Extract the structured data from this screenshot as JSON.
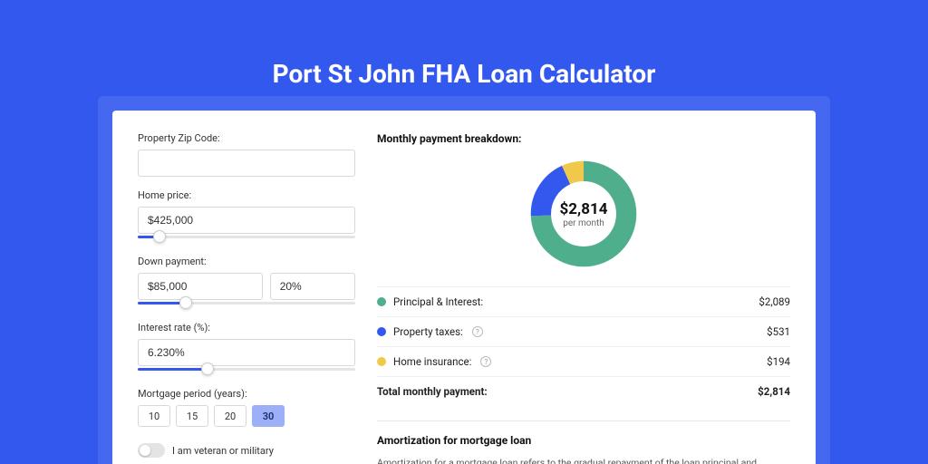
{
  "page": {
    "title": "Port St John FHA Loan Calculator",
    "bg_color": "#3358ee",
    "inner_bg_color": "#4667f0",
    "card_bg": "#ffffff"
  },
  "form": {
    "zip": {
      "label": "Property Zip Code:",
      "value": ""
    },
    "home_price": {
      "label": "Home price:",
      "value": "$425,000",
      "slider_pct": 10
    },
    "down_payment": {
      "label": "Down payment:",
      "amount": "$85,000",
      "pct": "20%",
      "slider_pct": 22
    },
    "interest_rate": {
      "label": "Interest rate (%):",
      "value": "6.230%",
      "slider_pct": 32
    },
    "mortgage_period": {
      "label": "Mortgage period (years):",
      "options": [
        "10",
        "15",
        "20",
        "30"
      ],
      "selected_index": 3
    },
    "veteran": {
      "label": "I am veteran or military",
      "value": false
    }
  },
  "breakdown": {
    "title": "Monthly payment breakdown:",
    "center_amount": "$2,814",
    "center_sub": "per month",
    "donut": {
      "segments": [
        {
          "value": 74.2,
          "color": "#4fae8b"
        },
        {
          "value": 18.9,
          "color": "#3358ee"
        },
        {
          "value": 6.9,
          "color": "#f0c94a"
        }
      ],
      "stroke_width": 18
    },
    "rows": [
      {
        "dot": "#4fae8b",
        "label": "Principal & Interest:",
        "info": false,
        "value": "$2,089"
      },
      {
        "dot": "#3358ee",
        "label": "Property taxes:",
        "info": true,
        "value": "$531"
      },
      {
        "dot": "#f0c94a",
        "label": "Home insurance:",
        "info": true,
        "value": "$194"
      }
    ],
    "total": {
      "label": "Total monthly payment:",
      "value": "$2,814"
    }
  },
  "amortization": {
    "title": "Amortization for mortgage loan",
    "text": "Amortization for a mortgage loan refers to the gradual repayment of the loan principal and interest over a specified"
  }
}
